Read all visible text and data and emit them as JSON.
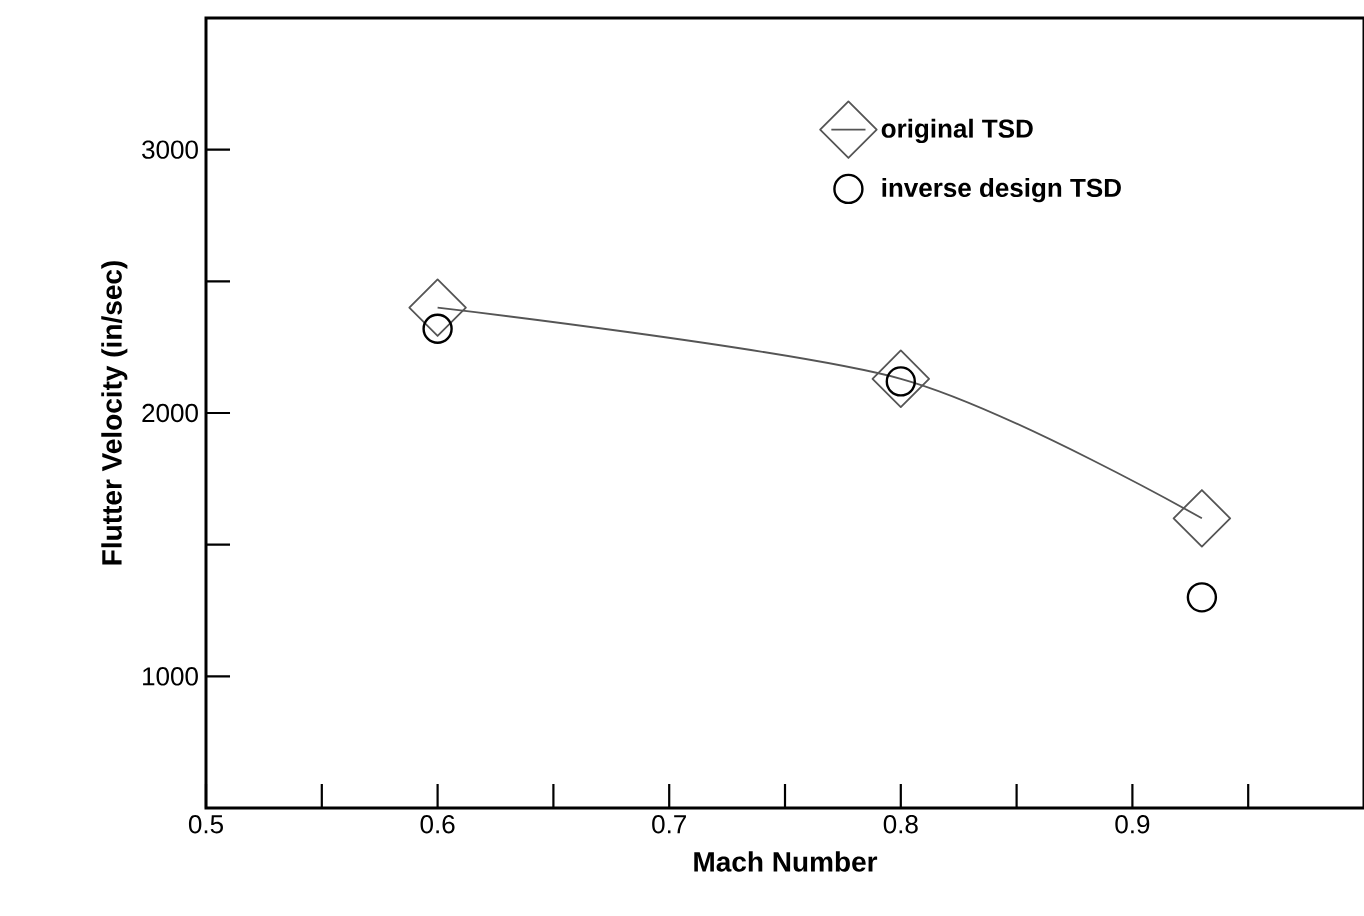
{
  "chart_data": {
    "type": "line",
    "xlabel": "Mach Number",
    "ylabel": "Flutter Velocity (in/sec)",
    "xlim": [
      0.5,
      1.0
    ],
    "ylim": [
      500,
      3500
    ],
    "xticks": [
      0.5,
      {
        "value": 0.55,
        "label": null
      },
      0.6,
      {
        "value": 0.65,
        "label": null
      },
      0.7,
      {
        "value": 0.75,
        "label": null
      },
      0.8,
      {
        "value": 0.85,
        "label": null
      },
      0.9,
      {
        "value": 0.95,
        "label": null
      }
    ],
    "yticks": [
      1000,
      {
        "value": 1500,
        "label": null
      },
      2000,
      {
        "value": 2500,
        "label": null
      },
      3000
    ],
    "legend": "top right",
    "grid": false,
    "series": [
      {
        "name": "original TSD",
        "marker": "diamond",
        "color": "#555555",
        "x": [
          0.6,
          0.8,
          0.93
        ],
        "values": [
          2400,
          2130,
          1600
        ]
      },
      {
        "name": "inverse design TSD",
        "type": "scatter",
        "marker": "circle",
        "color": "#000000",
        "x": [
          0.6,
          0.8,
          0.93
        ],
        "values": [
          2320,
          2120,
          1300
        ]
      }
    ]
  }
}
